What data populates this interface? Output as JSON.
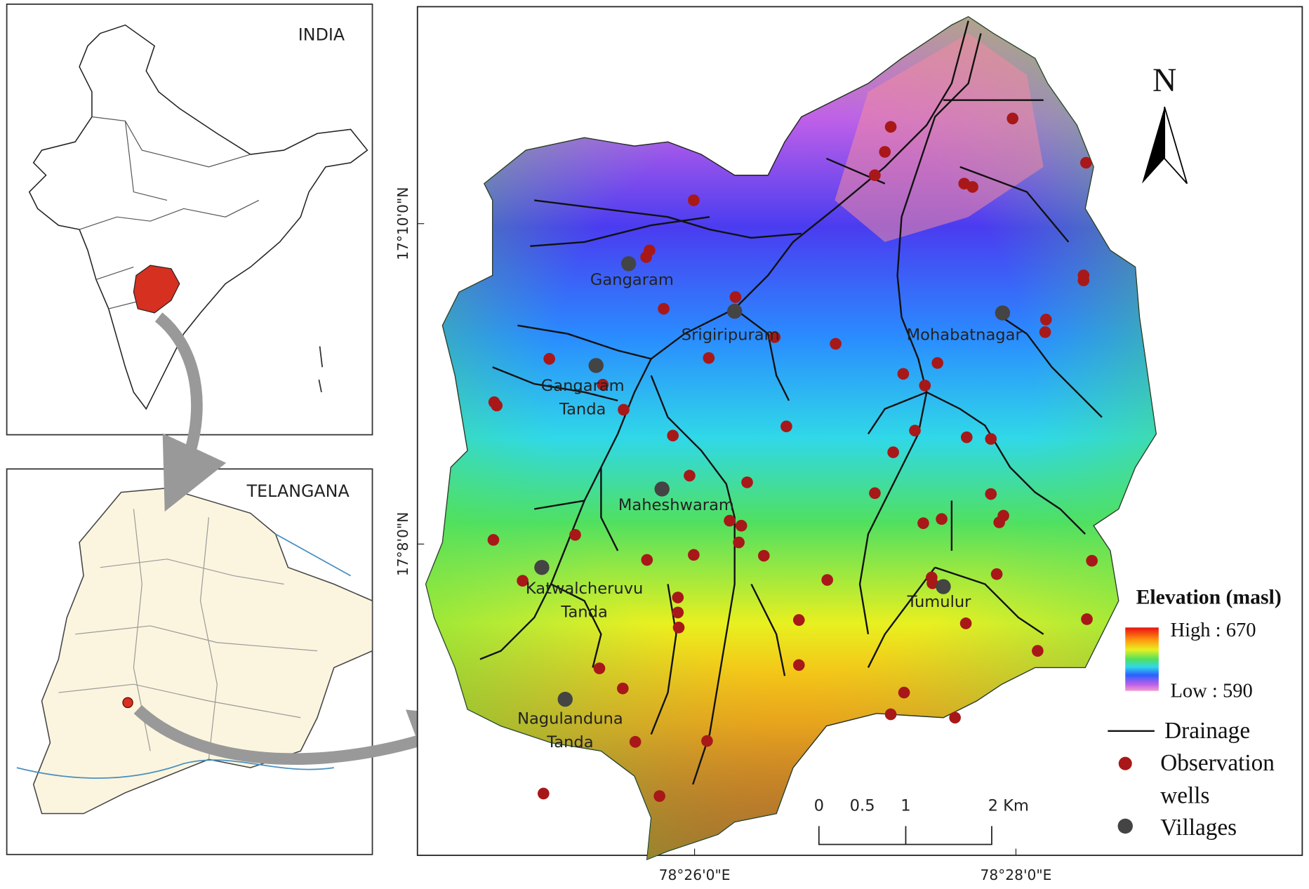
{
  "inset_india": {
    "title": "INDIA"
  },
  "inset_telangana": {
    "title": "TELANGANA"
  },
  "map": {
    "north": "N",
    "lat_labels": [
      "17°10'0\"N",
      "17°8'0\"N"
    ],
    "lon_labels": [
      "78°26'0\"E",
      "78°28'0\"E"
    ],
    "villages": [
      {
        "label": [
          "Gangaram"
        ]
      },
      {
        "label": [
          "Srigiripuram"
        ]
      },
      {
        "label": [
          "Mohabatnagar"
        ]
      },
      {
        "label": [
          "Gangaram",
          "Tanda"
        ]
      },
      {
        "label": [
          "Maheshwaram"
        ]
      },
      {
        "label": [
          "Katwalcheruvu",
          "Tanda"
        ]
      },
      {
        "label": [
          "Tumulur"
        ]
      },
      {
        "label": [
          "Nagulanduna",
          "Tanda"
        ]
      }
    ],
    "scale_bar": [
      "0",
      "0.5",
      "1",
      "2 Km"
    ]
  },
  "legend": {
    "title": "Elevation (masl)",
    "high": "High : 670",
    "low": "Low : 590",
    "drainage": "Drainage",
    "wells": [
      "Observation",
      "wells"
    ],
    "villages": "Villages"
  }
}
